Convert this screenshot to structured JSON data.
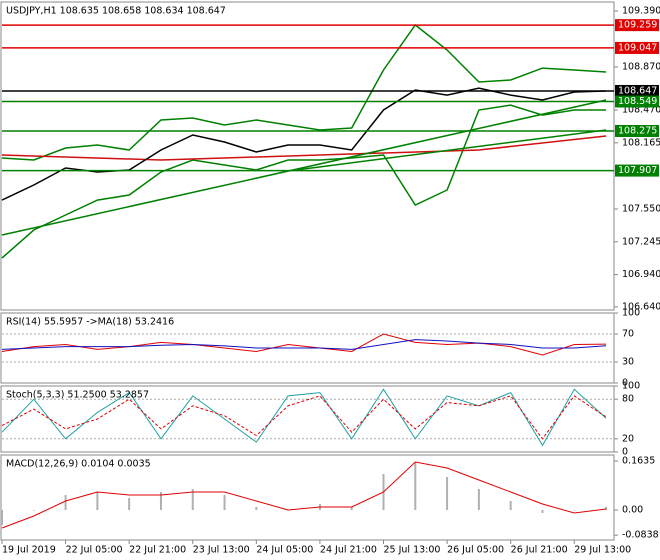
{
  "chart_data": [
    {
      "type": "line",
      "title": "USDJPY,H1  108.635 108.658 108.634 108.647",
      "xlim": [
        0,
        154
      ],
      "ylim": [
        106.611,
        109.474
      ],
      "grid": false,
      "yticks": [
        {
          "value": 109.39,
          "label": "109.390"
        },
        {
          "value": 108.87,
          "label": "108.870"
        },
        {
          "value": 108.47,
          "label": "108.470"
        },
        {
          "value": 108.165,
          "label": "108.165"
        },
        {
          "value": 107.55,
          "label": "107.550"
        },
        {
          "value": 107.245,
          "label": "107.245"
        },
        {
          "value": 106.94,
          "label": "106.940"
        },
        {
          "value": 106.64,
          "label": "106.640"
        }
      ],
      "x": [
        0,
        8,
        16,
        24,
        32,
        40,
        48,
        56,
        64,
        72,
        80,
        88,
        96,
        104,
        112,
        120,
        128,
        136,
        144,
        152
      ],
      "series": [
        {
          "color": "#008000",
          "values": [
            108.024,
            108.005,
            108.117,
            108.145,
            108.098,
            108.377,
            108.396,
            108.331,
            108.377,
            108.331,
            108.284,
            108.303,
            108.842,
            109.26,
            109.028,
            108.73,
            108.749,
            108.86,
            108.842,
            108.823
          ]
        },
        {
          "color": "#008000",
          "values": [
            107.094,
            107.355,
            107.494,
            107.633,
            107.68,
            107.894,
            108.005,
            107.959,
            107.912,
            108.005,
            108.005,
            108.024,
            108.052,
            107.587,
            107.726,
            108.47,
            108.516,
            108.423,
            108.47,
            108.47
          ]
        },
        {
          "color": "#d01010",
          "x": [
            0,
            40,
            80,
            120,
            152
          ],
          "values": [
            108.052,
            108.005,
            108.052,
            108.098,
            108.228
          ]
        },
        {
          "color": "#008000",
          "x": [
            0,
            152
          ],
          "values": [
            107.308,
            108.563
          ]
        },
        {
          "color": "#008000",
          "x": [
            74,
            152
          ],
          "values": [
            107.912,
            108.284
          ]
        },
        {
          "color": "#000000",
          "values": [
            107.633,
            107.773,
            107.931,
            107.894,
            107.912,
            108.098,
            108.238,
            108.173,
            108.08,
            108.145,
            108.145,
            108.098,
            108.47,
            108.656,
            108.609,
            108.674,
            108.609,
            108.563,
            108.637,
            108.647
          ]
        }
      ],
      "levels": [
        {
          "value": 109.259,
          "label": "109.259",
          "color": "#e00000"
        },
        {
          "value": 109.047,
          "label": "109.047",
          "color": "#e00000"
        },
        {
          "value": 108.647,
          "label": "108.647",
          "color": "#000000"
        },
        {
          "value": 108.549,
          "label": "108.549",
          "color": "#008000"
        },
        {
          "value": 108.275,
          "label": "108.275",
          "color": "#008000"
        },
        {
          "value": 107.907,
          "label": "107.907",
          "color": "#008000"
        }
      ]
    },
    {
      "type": "line",
      "title": "RSI(14) 55.5957  ->MA(18) 53.2416",
      "xlim": [
        0,
        154
      ],
      "ylim": [
        0,
        100
      ],
      "yticks": [
        100,
        70,
        30,
        0
      ],
      "grid": true,
      "x": [
        0,
        8,
        16,
        24,
        32,
        40,
        48,
        56,
        64,
        72,
        80,
        88,
        96,
        104,
        112,
        120,
        128,
        136,
        144,
        152
      ],
      "series": [
        {
          "color": "#e00000",
          "values": [
            45,
            52,
            55,
            48,
            52,
            58,
            55,
            50,
            45,
            55,
            50,
            45,
            70,
            58,
            55,
            57,
            52,
            40,
            55,
            55.6
          ]
        },
        {
          "color": "#1010c0",
          "values": [
            48,
            50,
            52,
            52,
            52,
            54,
            55,
            53,
            50,
            50,
            50,
            48,
            55,
            62,
            60,
            57,
            55,
            50,
            50,
            53.2
          ]
        }
      ]
    },
    {
      "type": "line",
      "title": "Stoch(5,3,3) 51.2500 53.2857",
      "xlim": [
        0,
        154
      ],
      "ylim": [
        0,
        100
      ],
      "yticks": [
        100,
        80,
        20,
        0
      ],
      "grid": true,
      "x": [
        0,
        8,
        16,
        24,
        32,
        40,
        48,
        56,
        64,
        72,
        80,
        88,
        96,
        104,
        112,
        120,
        128,
        136,
        144,
        152
      ],
      "series": [
        {
          "color": "#20a0a0",
          "values": [
            30,
            80,
            20,
            60,
            90,
            20,
            85,
            50,
            15,
            85,
            90,
            20,
            95,
            20,
            85,
            70,
            90,
            10,
            95,
            51
          ]
        },
        {
          "color": "#e00000",
          "dash": true,
          "values": [
            40,
            65,
            35,
            50,
            80,
            35,
            70,
            55,
            25,
            70,
            85,
            30,
            80,
            35,
            75,
            70,
            85,
            20,
            85,
            53
          ]
        }
      ]
    },
    {
      "type": "line",
      "title": "MACD(12,26,9) 0.0104 0.0035",
      "xlim": [
        0,
        154
      ],
      "ylim": [
        -0.1,
        0.1835
      ],
      "grid": false,
      "yticks": [
        0.1635,
        {
          "value": 0,
          "label": "0.00"
        },
        -0.0838
      ],
      "xticks": [
        {
          "value": 0,
          "label": "19 Jul 2019"
        },
        {
          "value": 16,
          "label": "22 Jul 05:00"
        },
        {
          "value": 32,
          "label": "22 Jul 21:00"
        },
        {
          "value": 48,
          "label": "23 Jul 13:00"
        },
        {
          "value": 64,
          "label": "24 Jul 05:00"
        },
        {
          "value": 80,
          "label": "24 Jul 21:00"
        },
        {
          "value": 96,
          "label": "25 Jul 13:00"
        },
        {
          "value": 112,
          "label": "26 Jul 05:00"
        },
        {
          "value": 128,
          "label": "26 Jul 21:00"
        },
        {
          "value": 144,
          "label": "29 Jul 13:00"
        }
      ],
      "x": [
        0,
        8,
        16,
        24,
        32,
        40,
        48,
        56,
        64,
        72,
        80,
        88,
        96,
        104,
        112,
        120,
        128,
        136,
        144,
        152
      ],
      "series": [
        {
          "type": "bar",
          "color": "#b0b0b0",
          "values": [
            -0.05,
            0.0,
            0.05,
            0.06,
            0.04,
            0.06,
            0.07,
            0.05,
            0.01,
            0.0,
            0.02,
            0.01,
            0.12,
            0.16,
            0.11,
            0.07,
            0.03,
            -0.01,
            0.0,
            0.0104
          ]
        },
        {
          "type": "line",
          "color": "#e00000",
          "values": [
            -0.06,
            -0.02,
            0.03,
            0.06,
            0.05,
            0.05,
            0.06,
            0.06,
            0.03,
            0.0,
            0.01,
            0.01,
            0.06,
            0.16,
            0.14,
            0.1,
            0.06,
            0.02,
            -0.01,
            0.0035
          ]
        }
      ]
    }
  ]
}
